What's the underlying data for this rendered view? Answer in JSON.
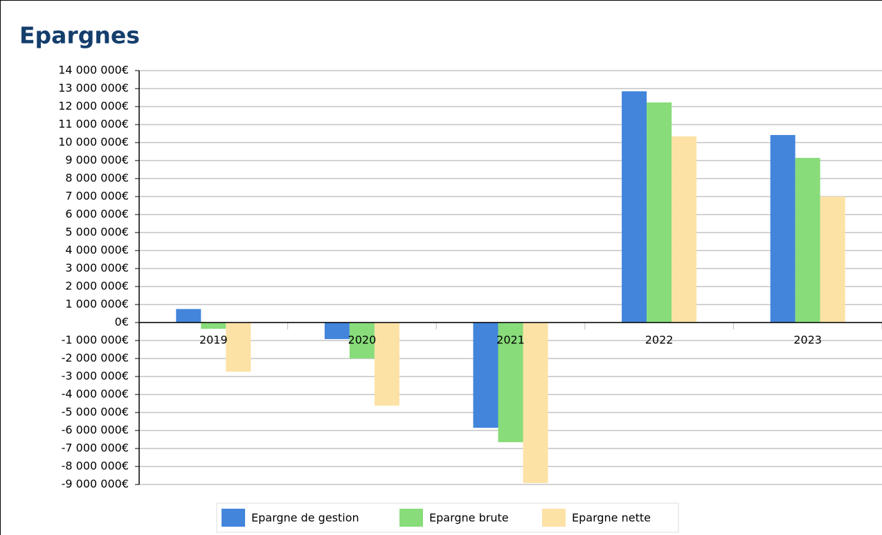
{
  "chart_data": {
    "type": "bar",
    "title": "Epargnes",
    "categories": [
      "2019",
      "2020",
      "2021",
      "2022",
      "2023"
    ],
    "series": [
      {
        "name": "Epargne de gestion",
        "color": "#4285db",
        "values": [
          750000,
          -920000,
          -5850000,
          12850000,
          10420000
        ]
      },
      {
        "name": "Epargne brute",
        "color": "#88dc7a",
        "values": [
          -350000,
          -2000000,
          -6650000,
          12230000,
          9150000
        ]
      },
      {
        "name": "Epargne nette",
        "color": "#fde2a6",
        "values": [
          -2730000,
          -4620000,
          -8920000,
          10350000,
          7000000
        ]
      }
    ],
    "ylim": [
      -9000000,
      14000000
    ],
    "yticks": [
      {
        "value": 14000000,
        "label": "14 000 000€"
      },
      {
        "value": 13000000,
        "label": "13 000 000€"
      },
      {
        "value": 12000000,
        "label": "12 000 000€"
      },
      {
        "value": 11000000,
        "label": "11 000 000€"
      },
      {
        "value": 10000000,
        "label": "10 000 000€"
      },
      {
        "value": 9000000,
        "label": "9 000 000€"
      },
      {
        "value": 8000000,
        "label": "8 000 000€"
      },
      {
        "value": 7000000,
        "label": "7 000 000€"
      },
      {
        "value": 6000000,
        "label": "6 000 000€"
      },
      {
        "value": 5000000,
        "label": "5 000 000€"
      },
      {
        "value": 4000000,
        "label": "4 000 000€"
      },
      {
        "value": 3000000,
        "label": "3 000 000€"
      },
      {
        "value": 2000000,
        "label": "2 000 000€"
      },
      {
        "value": 1000000,
        "label": "1 000 000€"
      },
      {
        "value": 0,
        "label": "0€"
      },
      {
        "value": -1000000,
        "label": "-1 000 000€"
      },
      {
        "value": -2000000,
        "label": "-2 000 000€"
      },
      {
        "value": -3000000,
        "label": "-3 000 000€"
      },
      {
        "value": -4000000,
        "label": "-4 000 000€"
      },
      {
        "value": -5000000,
        "label": "-5 000 000€"
      },
      {
        "value": -6000000,
        "label": "-6 000 000€"
      },
      {
        "value": -7000000,
        "label": "-7 000 000€"
      },
      {
        "value": -8000000,
        "label": "-8 000 000€"
      },
      {
        "value": -9000000,
        "label": "-9 000 000€"
      }
    ],
    "grid": true,
    "legend": "bottom"
  }
}
